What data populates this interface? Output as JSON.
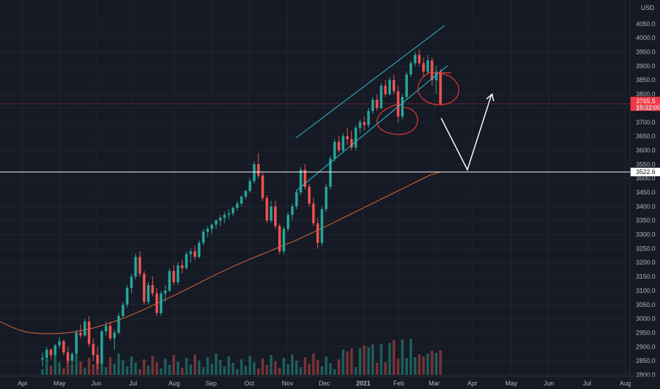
{
  "chart_data": {
    "type": "candlestick",
    "currency_label": "USD",
    "ylim": [
      2800,
      4100
    ],
    "y_ticks": [
      2800,
      2850,
      2900,
      2950,
      3000,
      3050,
      3100,
      3150,
      3200,
      3250,
      3300,
      3350,
      3400,
      3450,
      3500,
      3550,
      3600,
      3650,
      3700,
      3750,
      3800,
      3850,
      3900,
      3950,
      4000,
      4050
    ],
    "x_labels": [
      "Apr",
      "May",
      "Jun",
      "Jul",
      "Aug",
      "Sep",
      "Oct",
      "Nov",
      "Dec",
      "2021",
      "Feb",
      "Mar",
      "Apr",
      "May",
      "Jun",
      "Jul",
      "Aug"
    ],
    "bold_x_labels": [
      "2021"
    ],
    "last_price": {
      "label": "3765.5",
      "countdown": "15:32:00",
      "value": 3765.5,
      "color": "#f23645"
    },
    "horizontal_level": {
      "label": "3522.6",
      "value": 3522.6,
      "color": "#ffffff"
    },
    "moving_average_color": "#e0683a",
    "up_color": "#26a69a",
    "down_color": "#ef5350",
    "series": [
      {
        "name": "price",
        "values": [
          [
            2855,
            2880,
            2830,
            2860
          ],
          [
            2860,
            2900,
            2850,
            2890
          ],
          [
            2890,
            2895,
            2855,
            2870
          ],
          [
            2870,
            2910,
            2865,
            2905
          ],
          [
            2905,
            2935,
            2895,
            2920
          ],
          [
            2920,
            2925,
            2870,
            2880
          ],
          [
            2880,
            2900,
            2840,
            2850
          ],
          [
            2850,
            2880,
            2830,
            2875
          ],
          [
            2875,
            2960,
            2870,
            2950
          ],
          [
            2950,
            2980,
            2930,
            2940
          ],
          [
            2940,
            3000,
            2935,
            2990
          ],
          [
            2990,
            3010,
            2900,
            2910
          ],
          [
            2910,
            2930,
            2850,
            2870
          ],
          [
            2870,
            2900,
            2820,
            2840
          ],
          [
            2840,
            2960,
            2835,
            2955
          ],
          [
            2955,
            2990,
            2940,
            2975
          ],
          [
            2975,
            2990,
            2920,
            2930
          ],
          [
            2930,
            2960,
            2890,
            2950
          ],
          [
            2950,
            3020,
            2945,
            3010
          ],
          [
            3010,
            3060,
            3000,
            3050
          ],
          [
            3050,
            3120,
            3040,
            3110
          ],
          [
            3110,
            3160,
            3090,
            3150
          ],
          [
            3150,
            3230,
            3140,
            3220
          ],
          [
            3220,
            3240,
            3150,
            3160
          ],
          [
            3160,
            3170,
            3050,
            3060
          ],
          [
            3060,
            3130,
            3050,
            3120
          ],
          [
            3120,
            3150,
            3080,
            3090
          ],
          [
            3090,
            3110,
            3010,
            3020
          ],
          [
            3020,
            3100,
            3010,
            3090
          ],
          [
            3090,
            3120,
            3060,
            3100
          ],
          [
            3100,
            3180,
            3095,
            3170
          ],
          [
            3170,
            3190,
            3120,
            3130
          ],
          [
            3130,
            3200,
            3120,
            3190
          ],
          [
            3190,
            3210,
            3160,
            3180
          ],
          [
            3180,
            3240,
            3175,
            3230
          ],
          [
            3230,
            3250,
            3200,
            3240
          ],
          [
            3240,
            3260,
            3210,
            3220
          ],
          [
            3220,
            3280,
            3215,
            3270
          ],
          [
            3270,
            3320,
            3260,
            3310
          ],
          [
            3310,
            3330,
            3290,
            3320
          ],
          [
            3320,
            3340,
            3300,
            3335
          ],
          [
            3335,
            3355,
            3320,
            3350
          ],
          [
            3350,
            3370,
            3330,
            3360
          ],
          [
            3360,
            3380,
            3340,
            3370
          ],
          [
            3370,
            3390,
            3355,
            3375
          ],
          [
            3375,
            3400,
            3365,
            3395
          ],
          [
            3395,
            3420,
            3385,
            3410
          ],
          [
            3410,
            3440,
            3400,
            3435
          ],
          [
            3435,
            3460,
            3425,
            3455
          ],
          [
            3455,
            3500,
            3450,
            3490
          ],
          [
            3490,
            3560,
            3480,
            3550
          ],
          [
            3550,
            3590,
            3500,
            3510
          ],
          [
            3510,
            3520,
            3420,
            3430
          ],
          [
            3430,
            3440,
            3340,
            3350
          ],
          [
            3350,
            3420,
            3340,
            3400
          ],
          [
            3400,
            3420,
            3320,
            3330
          ],
          [
            3330,
            3340,
            3230,
            3240
          ],
          [
            3240,
            3330,
            3230,
            3320
          ],
          [
            3320,
            3380,
            3310,
            3370
          ],
          [
            3370,
            3410,
            3350,
            3400
          ],
          [
            3400,
            3460,
            3390,
            3450
          ],
          [
            3450,
            3540,
            3440,
            3530
          ],
          [
            3530,
            3550,
            3460,
            3470
          ],
          [
            3470,
            3480,
            3400,
            3410
          ],
          [
            3410,
            3430,
            3330,
            3340
          ],
          [
            3340,
            3360,
            3250,
            3270
          ],
          [
            3270,
            3400,
            3260,
            3390
          ],
          [
            3390,
            3480,
            3380,
            3470
          ],
          [
            3470,
            3580,
            3460,
            3570
          ],
          [
            3570,
            3640,
            3560,
            3630
          ],
          [
            3630,
            3650,
            3590,
            3600
          ],
          [
            3600,
            3660,
            3590,
            3650
          ],
          [
            3650,
            3680,
            3620,
            3640
          ],
          [
            3640,
            3670,
            3600,
            3610
          ],
          [
            3610,
            3690,
            3600,
            3680
          ],
          [
            3680,
            3710,
            3660,
            3700
          ],
          [
            3700,
            3720,
            3670,
            3690
          ],
          [
            3690,
            3750,
            3680,
            3740
          ],
          [
            3740,
            3790,
            3730,
            3780
          ],
          [
            3780,
            3800,
            3740,
            3750
          ],
          [
            3750,
            3840,
            3745,
            3830
          ],
          [
            3830,
            3850,
            3790,
            3800
          ],
          [
            3800,
            3860,
            3795,
            3850
          ],
          [
            3850,
            3870,
            3800,
            3810
          ],
          [
            3810,
            3830,
            3700,
            3720
          ],
          [
            3720,
            3800,
            3710,
            3790
          ],
          [
            3790,
            3880,
            3780,
            3870
          ],
          [
            3870,
            3920,
            3860,
            3910
          ],
          [
            3910,
            3950,
            3900,
            3940
          ],
          [
            3940,
            3960,
            3900,
            3910
          ],
          [
            3910,
            3930,
            3860,
            3880
          ],
          [
            3880,
            3940,
            3870,
            3920
          ],
          [
            3920,
            3930,
            3830,
            3850
          ],
          [
            3850,
            3900,
            3800,
            3880
          ],
          [
            3880,
            3890,
            3760,
            3765.5
          ]
        ]
      }
    ],
    "moving_average": [
      2990,
      2972,
      2958,
      2950,
      2947,
      2946,
      2948,
      2952,
      2958,
      2966,
      2976,
      2988,
      3001,
      3016,
      3032,
      3049,
      3066,
      3083,
      3101,
      3119,
      3138,
      3156,
      3173,
      3190,
      3206,
      3221,
      3236,
      3251,
      3266,
      3281,
      3298,
      3315,
      3332,
      3350,
      3368,
      3386,
      3404,
      3422,
      3440,
      3458,
      3476,
      3494,
      3512,
      3522.6
    ],
    "annotations": {
      "channel_color": "#26c6da",
      "highlight_color": "#e53935",
      "projection_color": "#ffffff"
    }
  }
}
